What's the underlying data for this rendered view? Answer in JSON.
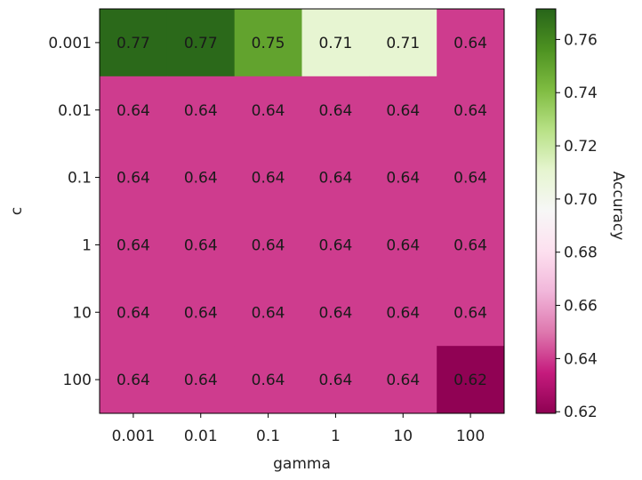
{
  "chart_data": {
    "type": "heatmap",
    "xlabel": "gamma",
    "ylabel": "c",
    "x_categories": [
      "0.001",
      "0.01",
      "0.1",
      "1",
      "10",
      "100"
    ],
    "y_categories": [
      "0.001",
      "0.01",
      "0.1",
      "1",
      "10",
      "100"
    ],
    "values": [
      [
        0.77,
        0.77,
        0.75,
        0.71,
        0.71,
        0.64
      ],
      [
        0.64,
        0.64,
        0.64,
        0.64,
        0.64,
        0.64
      ],
      [
        0.64,
        0.64,
        0.64,
        0.64,
        0.64,
        0.64
      ],
      [
        0.64,
        0.64,
        0.64,
        0.64,
        0.64,
        0.64
      ],
      [
        0.64,
        0.64,
        0.64,
        0.64,
        0.64,
        0.64
      ],
      [
        0.64,
        0.64,
        0.64,
        0.64,
        0.64,
        0.62
      ]
    ],
    "cell_labels": [
      [
        "0.77",
        "0.77",
        "0.75",
        "0.71",
        "0.71",
        "0.64"
      ],
      [
        "0.64",
        "0.64",
        "0.64",
        "0.64",
        "0.64",
        "0.64"
      ],
      [
        "0.64",
        "0.64",
        "0.64",
        "0.64",
        "0.64",
        "0.64"
      ],
      [
        "0.64",
        "0.64",
        "0.64",
        "0.64",
        "0.64",
        "0.64"
      ],
      [
        "0.64",
        "0.64",
        "0.64",
        "0.64",
        "0.64",
        "0.64"
      ],
      [
        "0.64",
        "0.64",
        "0.64",
        "0.64",
        "0.64",
        "0.62"
      ]
    ],
    "colormap": "PiYG",
    "colorbar": {
      "label": "Accuracy",
      "range": [
        0.6194,
        0.7715
      ],
      "ticks": [
        0.62,
        0.64,
        0.66,
        0.68,
        0.7,
        0.72,
        0.74,
        0.76
      ],
      "tick_labels": [
        "0.62",
        "0.64",
        "0.66",
        "0.68",
        "0.70",
        "0.72",
        "0.74",
        "0.76"
      ],
      "placement": "right"
    },
    "colormap_stops": [
      "#8e0152",
      "#c51b7d",
      "#de77ae",
      "#f1b6da",
      "#fde0ef",
      "#f7f7f7",
      "#e6f5d0",
      "#b8e186",
      "#7fbc41",
      "#4d9221",
      "#276419"
    ],
    "grid": false
  }
}
